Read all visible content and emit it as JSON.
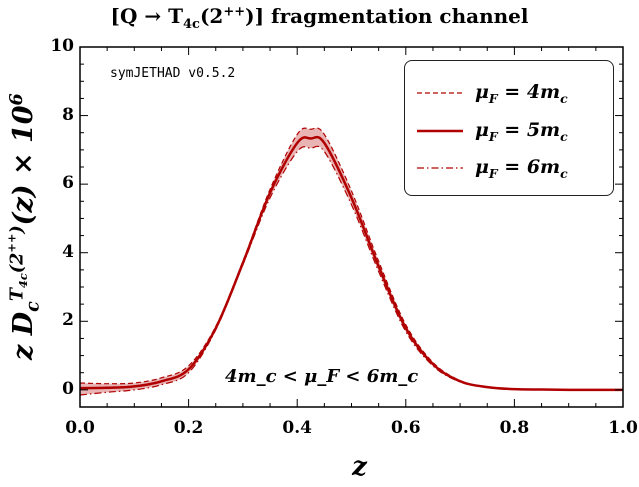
{
  "chart_data": {
    "type": "line",
    "title": "[Q → T_{4c}(2^{++})] fragmentation channel",
    "xlabel": "z",
    "ylabel": "z D_c^{T_{4c}(2^{++})}(z) × 10^6",
    "xlim": [
      0,
      1
    ],
    "ylim": [
      -0.5,
      10
    ],
    "xticks": [
      "0.0",
      "0.2",
      "0.4",
      "0.6",
      "0.8",
      "1.0"
    ],
    "yticks": [
      "0",
      "2",
      "4",
      "6",
      "8",
      "10"
    ],
    "grid": false,
    "legend_position": "top-right",
    "annotations": [
      "symJETHAD v0.5.2",
      "4m_c < μ_F < 6m_c"
    ],
    "band_color": "#e8b4b4",
    "line_color": "#b00000",
    "x": [
      0,
      0.05,
      0.1,
      0.15,
      0.2,
      0.25,
      0.3,
      0.35,
      0.4,
      0.425,
      0.45,
      0.5,
      0.55,
      0.6,
      0.65,
      0.7,
      0.75,
      0.8,
      0.85,
      0.9,
      0.95,
      1.0
    ],
    "series": [
      {
        "name": "μ_F = 4m_c",
        "style": "dashed",
        "values": [
          0.2,
          0.18,
          0.2,
          0.35,
          0.7,
          1.85,
          3.75,
          5.85,
          7.45,
          7.6,
          7.45,
          5.8,
          3.75,
          1.9,
          0.8,
          0.27,
          0.08,
          0.02,
          0.01,
          0,
          0,
          0
        ]
      },
      {
        "name": "μ_F = 5m_c",
        "style": "solid",
        "values": [
          0.05,
          0.06,
          0.1,
          0.25,
          0.6,
          1.8,
          3.7,
          5.75,
          7.2,
          7.33,
          7.2,
          5.6,
          3.6,
          1.8,
          0.75,
          0.25,
          0.08,
          0.02,
          0.01,
          0,
          0,
          0
        ]
      },
      {
        "name": "μ_F = 6m_c",
        "style": "dashdot",
        "values": [
          -0.15,
          -0.07,
          0,
          0.15,
          0.5,
          1.75,
          3.65,
          5.6,
          6.95,
          7.05,
          6.95,
          5.4,
          3.45,
          1.7,
          0.7,
          0.23,
          0.07,
          0.02,
          0.01,
          0,
          0,
          0
        ]
      }
    ]
  }
}
